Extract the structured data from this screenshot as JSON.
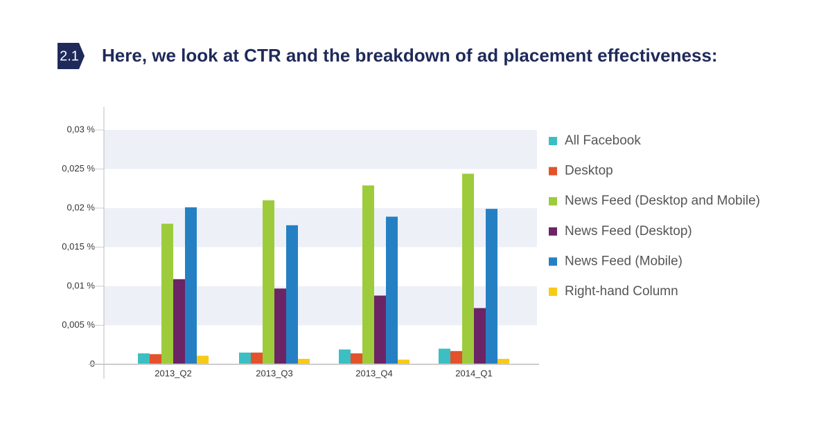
{
  "section_number": "2.1",
  "chart_data": {
    "type": "bar",
    "title": "Here, we look at CTR and the breakdown of ad placement effectiveness:",
    "categories": [
      "2013_Q2",
      "2013_Q3",
      "2013_Q4",
      "2014_Q1"
    ],
    "series": [
      {
        "name": "All Facebook",
        "color": "#3bbfc2",
        "values": [
          0.0014,
          0.0015,
          0.0019,
          0.002
        ]
      },
      {
        "name": "Desktop",
        "color": "#e2522b",
        "values": [
          0.0013,
          0.0015,
          0.0014,
          0.0017
        ]
      },
      {
        "name": "News Feed (Desktop and Mobile)",
        "color": "#9dcb3c",
        "values": [
          0.018,
          0.021,
          0.0229,
          0.0244
        ]
      },
      {
        "name": "News Feed (Desktop)",
        "color": "#6b2566",
        "values": [
          0.0109,
          0.0097,
          0.0088,
          0.0072
        ]
      },
      {
        "name": "News Feed (Mobile)",
        "color": "#2580c3",
        "values": [
          0.0201,
          0.0178,
          0.0189,
          0.0199
        ]
      },
      {
        "name": "Right-hand Column",
        "color": "#f7ca18",
        "values": [
          0.0011,
          0.0007,
          0.0006,
          0.0007
        ]
      }
    ],
    "ylim": [
      0,
      0.03
    ],
    "yticks": [
      0,
      {
        "value": 0.005,
        "label": "0,005 %"
      },
      {
        "value": 0.01,
        "label": "0,01 %"
      },
      {
        "value": 0.015,
        "label": "0,015 %"
      },
      {
        "value": 0.02,
        "label": "0,02 %"
      },
      {
        "value": 0.025,
        "label": "0,025 %"
      },
      {
        "value": 0.03,
        "label": "0,03 %"
      }
    ],
    "grid": true,
    "legend": "right"
  }
}
